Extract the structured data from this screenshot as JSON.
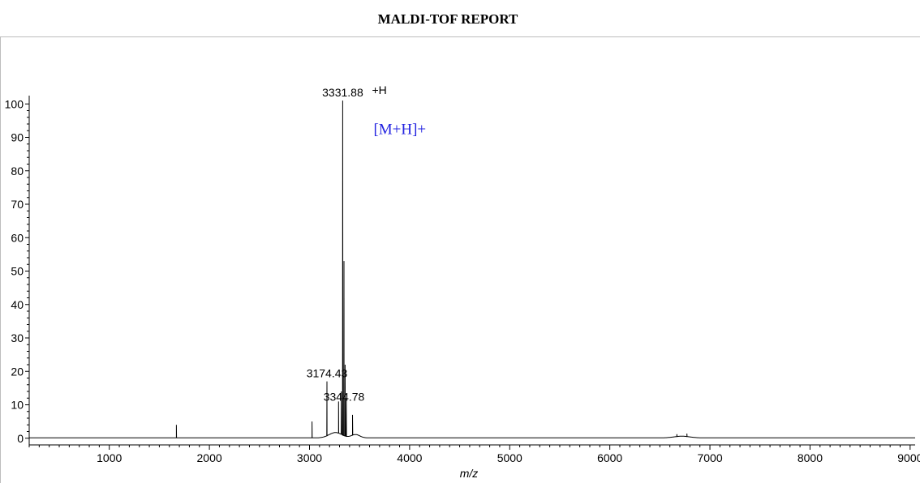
{
  "header": {
    "title": "MALDI-TOF REPORT"
  },
  "chart_data": {
    "type": "line",
    "title": "",
    "xlabel": "m/z",
    "ylabel": "",
    "xlim": [
      200,
      9050
    ],
    "ylim": [
      -2,
      102
    ],
    "x_ticks": [
      1000,
      2000,
      3000,
      4000,
      5000,
      6000,
      7000,
      8000,
      9000
    ],
    "y_ticks": [
      0,
      10,
      20,
      30,
      40,
      50,
      60,
      70,
      80,
      90,
      100
    ],
    "grid": false,
    "annotation_color": "#2323e0",
    "peaks": [
      {
        "x": 1670,
        "y": 4
      },
      {
        "x": 3025,
        "y": 5
      },
      {
        "x": 3174.43,
        "y": 17
      },
      {
        "x": 3290,
        "y": 11
      },
      {
        "x": 3318,
        "y": 14
      },
      {
        "x": 3331.88,
        "y": 101
      },
      {
        "x": 3344.78,
        "y": 53
      },
      {
        "x": 3356,
        "y": 22
      },
      {
        "x": 3368,
        "y": 12
      },
      {
        "x": 3430,
        "y": 7
      },
      {
        "x": 6670,
        "y": 1.2
      },
      {
        "x": 6770,
        "y": 1.4
      }
    ],
    "annotations": [
      {
        "text": "3331.88",
        "x": 3331.88,
        "y": 101
      },
      {
        "text": "3174.43",
        "x": 3174.43,
        "y": 17
      },
      {
        "text": "3344.78",
        "x": 3344.78,
        "y": 10
      }
    ],
    "adduct_label": "+H",
    "ion_label": "[M+H]+"
  }
}
